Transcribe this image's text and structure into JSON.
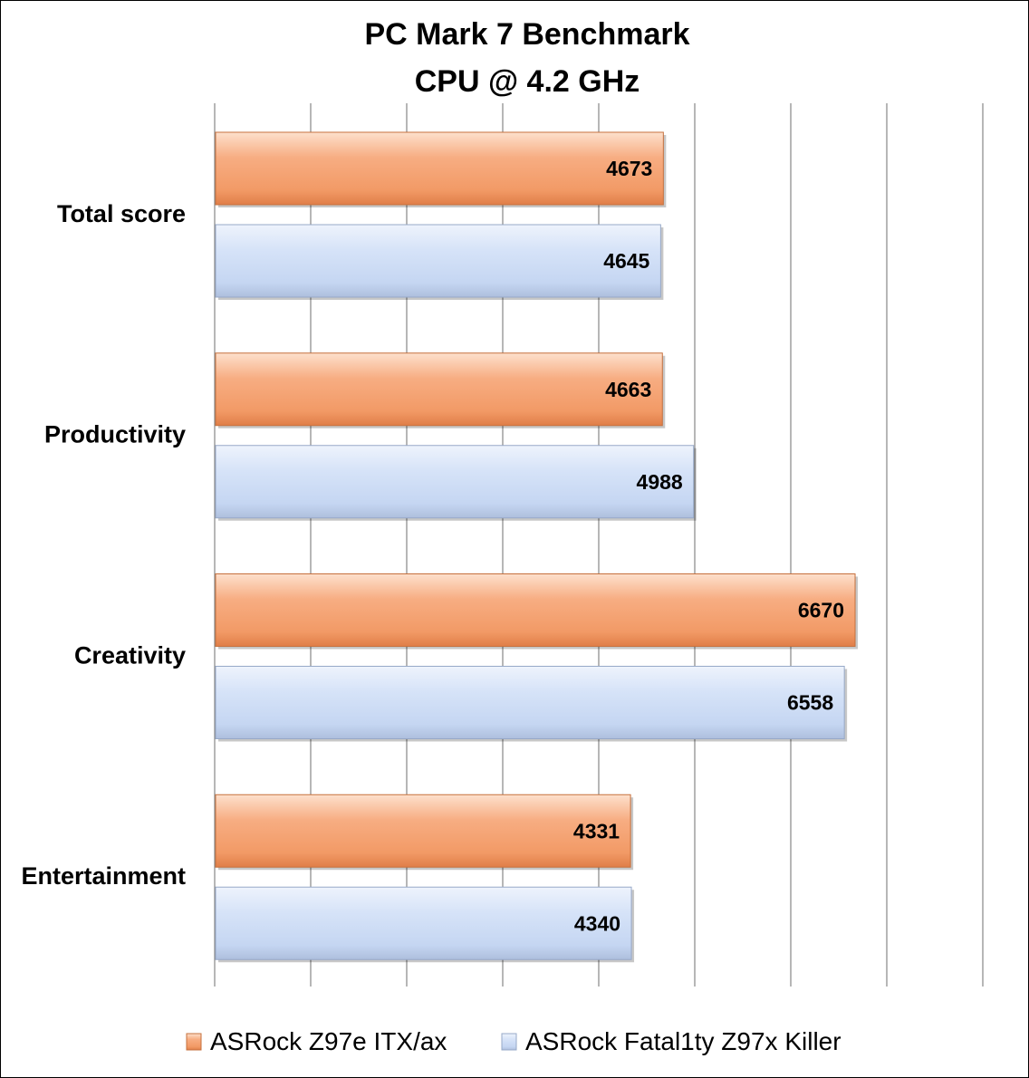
{
  "chart_data": {
    "type": "bar",
    "orientation": "horizontal",
    "title": [
      "PC Mark 7 Benchmark",
      "CPU @ 4.2 GHz"
    ],
    "categories": [
      "Total score",
      "Productivity",
      "Creativity",
      "Entertainment"
    ],
    "series": [
      {
        "name": "ASRock Z97e ITX/ax",
        "values": [
          4673,
          4663,
          6670,
          4331
        ],
        "color": "#f4a070"
      },
      {
        "name": "ASRock Fatal1ty Z97x Killer",
        "values": [
          4645,
          4988,
          6558,
          4340
        ],
        "color": "#c9daf5"
      }
    ],
    "xlim": [
      0,
      8000
    ],
    "x_gridlines": true,
    "x_tick_labels_shown": false,
    "data_labels": true,
    "legend": "bottom"
  }
}
